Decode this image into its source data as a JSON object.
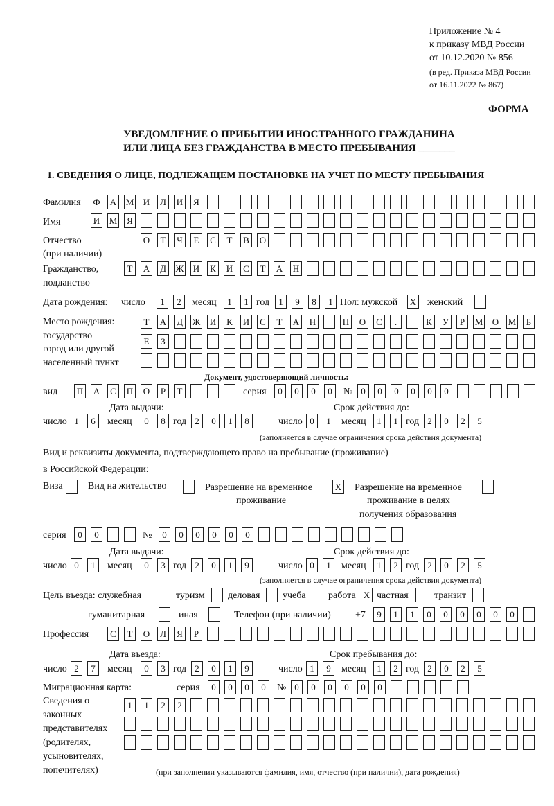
{
  "header": {
    "line1": "Приложение № 4",
    "line2": "к приказу МВД России",
    "line3": "от 10.12.2020 № 856",
    "line4": "(в ред. Приказа МВД России",
    "line5": "от 16.11.2022 № 867)",
    "form_label": "ФОРМА",
    "title1": "УВЕДОМЛЕНИЕ О ПРИБЫТИИ ИНОСТРАННОГО ГРАЖДАНИНА",
    "title2": "ИЛИ ЛИЦА БЕЗ ГРАЖДАНСТВА В МЕСТО ПРЕБЫВАНИЯ _______",
    "section1": "1. СВЕДЕНИЯ О ЛИЦЕ, ПОДЛЕЖАЩЕМ ПОСТАНОВКЕ НА УЧЕТ ПО МЕСТУ ПРЕБЫВАНИЯ"
  },
  "labels": {
    "surname": "Фамилия",
    "name": "Имя",
    "patronymic": "Отчество",
    "patronymic2": "(при наличии)",
    "citizenship": "Гражданство,",
    "citizenship2": "подданство",
    "dob": "Дата рождения:",
    "day": "число",
    "month": "месяц",
    "year": "год",
    "sex": "Пол: мужской",
    "female": "женский",
    "pob1": "Место рождения:",
    "pob2": "государство",
    "pob3": "город или другой",
    "pob4": "населенный пункт",
    "id_doc": "Документ, удостоверяющий личность:",
    "kind": "вид",
    "series": "серия",
    "number": "№",
    "issue_date": "Дата выдачи:",
    "valid_until": "Срок действия до:",
    "valid_note": "(заполняется в случае ограничения срока действия документа)",
    "right_doc1": "Вид и реквизиты документа, подтверждающего право на пребывание (проживание)",
    "right_doc2": "в Российской Федерации:",
    "visa": "Виза",
    "residence": "Вид на жительство",
    "temp1": "Разрешение на временное",
    "temp2": "проживание",
    "edu1": "Разрешение на временное",
    "edu2": "проживание в целях",
    "edu3": "получения образования",
    "purpose": "Цель въезда: служебная",
    "tourism": "туризм",
    "business": "деловая",
    "study": "учеба",
    "work": "работа",
    "private": "частная",
    "transit": "транзит",
    "humanitarian": "гуманитарная",
    "other": "иная",
    "phone": "Телефон (при наличии)",
    "phone_prefix": "+7",
    "profession": "Профессия",
    "entry_date": "Дата въезда:",
    "stay_until": "Срок пребывания до:",
    "migration_card": "Миграционная карта:",
    "rep1": "Сведения о",
    "rep2": "законных",
    "rep3": "представителях",
    "rep4": "(родителях,",
    "rep5": "усыновителях,",
    "rep6": "попечителях)",
    "rep_note": "(при заполнении указываются фамилия, имя, отчество (при наличии), дата рождения)"
  },
  "fields": {
    "surname": "ФАМИЛИЯ",
    "name": "ИМЯ",
    "patronymic": "ОТЧЕСТВО",
    "citizenship": "ТАДЖИКИСТАН",
    "dob_day": "12",
    "dob_month": "11",
    "dob_year": "1981",
    "sex_male": "X",
    "sex_female": "",
    "pob_line1": "ТАДЖИКИСТАН ПОС. КУРМОМБ",
    "pob_line2": "ЕЗ",
    "pob_line3": "",
    "id_kind": "ПАСПОРТ",
    "id_series": "0000",
    "id_number": "000000",
    "id_issue_day": "16",
    "id_issue_month": "08",
    "id_issue_year": "2018",
    "id_valid_day": "01",
    "id_valid_month": "11",
    "id_valid_year": "2025",
    "visa": "",
    "residence": "",
    "temp_residence": "X",
    "temp_residence_edu": "",
    "rd_series": "00",
    "rd_number": "000000",
    "rd_issue_day": "01",
    "rd_issue_month": "03",
    "rd_issue_year": "2019",
    "rd_valid_day": "01",
    "rd_valid_month": "12",
    "rd_valid_year": "2025",
    "p_official": "",
    "p_tourism": "",
    "p_business": "",
    "p_study": "",
    "p_work": "X",
    "p_private": "",
    "p_transit": "",
    "p_humanitarian": "",
    "p_other": "",
    "phone": "911000000",
    "profession": "СТОЛЯР",
    "entry_day": "27",
    "entry_month": "03",
    "entry_year": "2019",
    "stay_day": "19",
    "stay_month": "12",
    "stay_year": "2025",
    "mc_series": "0000",
    "mc_number": "000000",
    "rep_line1": "1122",
    "rep_line2": "",
    "rep_line3": ""
  }
}
